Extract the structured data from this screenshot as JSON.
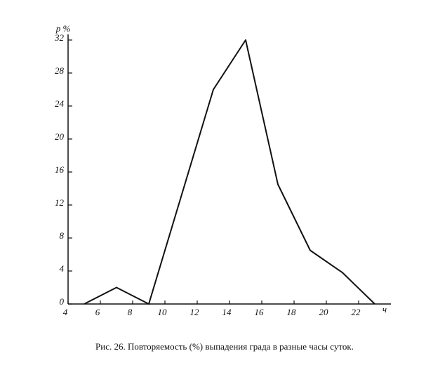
{
  "chart_data": {
    "type": "line",
    "title": "Рис. 26. Повторяемость (%) выпадения града в разные часы суток.",
    "y_label": "p %",
    "x_label": "ч",
    "x": [
      5,
      7,
      9,
      13,
      15,
      17,
      19,
      21,
      23
    ],
    "series": [
      {
        "name": "Повторяемость",
        "color": "#111111",
        "values": [
          0,
          2,
          0,
          26,
          32,
          14.5,
          6.5,
          3.8,
          0
        ]
      }
    ],
    "xlim": [
      4,
      24
    ],
    "ylim": [
      0,
      32
    ],
    "xticks": [
      4,
      6,
      8,
      10,
      12,
      14,
      16,
      18,
      20,
      22
    ],
    "yticks": [
      0,
      4,
      8,
      12,
      16,
      20,
      24,
      28,
      32
    ],
    "grid": false
  }
}
